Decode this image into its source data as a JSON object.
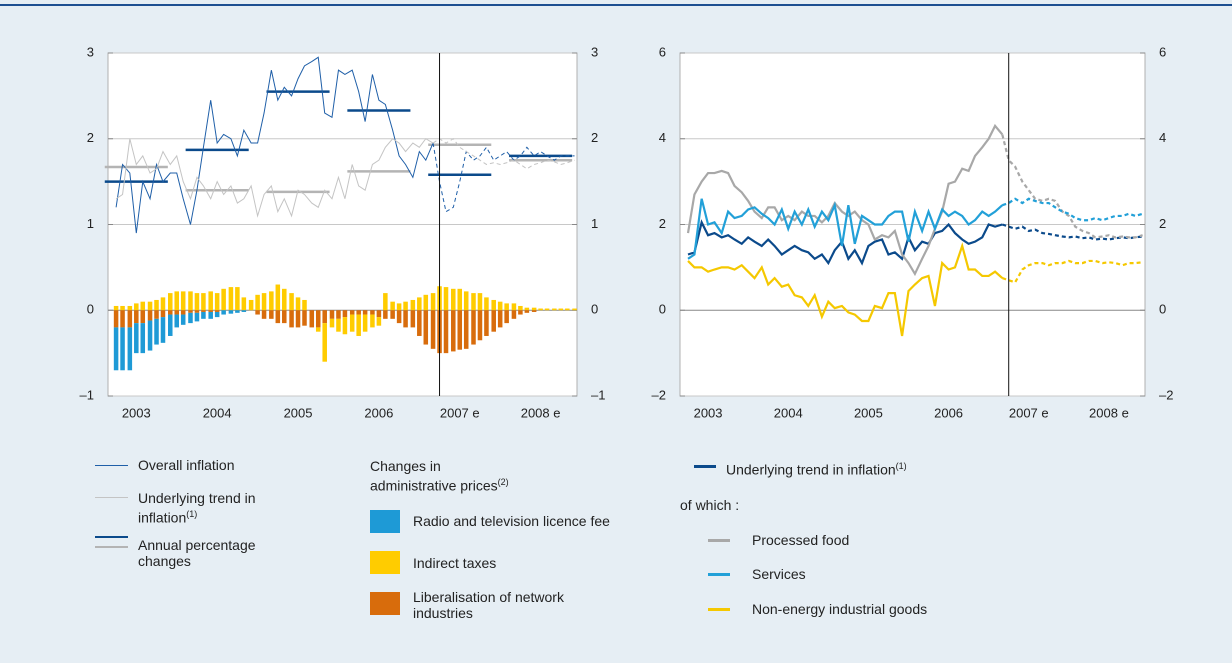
{
  "chart_data": [
    {
      "type": "line_bar",
      "xlim": [
        2003.15,
        2008.95
      ],
      "ylim": [
        -1,
        3
      ],
      "yticks": [
        {
          "value": -1,
          "label": "–1"
        },
        0,
        1,
        2,
        3
      ],
      "xticks": [
        {
          "value": 2003.5,
          "label": "2003"
        },
        {
          "value": 2004.5,
          "label": "2004"
        },
        {
          "value": 2005.5,
          "label": "2005"
        },
        {
          "value": 2006.5,
          "label": "2006"
        },
        {
          "value": 2007.5,
          "label": "2007 e"
        },
        {
          "value": 2008.5,
          "label": "2008 e"
        }
      ],
      "forecast_from": 2007.25,
      "grid": true,
      "x": [
        2003.25,
        2003.33,
        2003.42,
        2003.5,
        2003.58,
        2003.67,
        2003.75,
        2003.83,
        2003.92,
        2004,
        2004.08,
        2004.17,
        2004.25,
        2004.33,
        2004.42,
        2004.5,
        2004.58,
        2004.67,
        2004.75,
        2004.83,
        2004.92,
        2005,
        2005.08,
        2005.17,
        2005.25,
        2005.33,
        2005.42,
        2005.5,
        2005.58,
        2005.67,
        2005.75,
        2005.83,
        2005.92,
        2006,
        2006.08,
        2006.17,
        2006.25,
        2006.33,
        2006.42,
        2006.5,
        2006.58,
        2006.67,
        2006.75,
        2006.83,
        2006.92,
        2007,
        2007.08,
        2007.17,
        2007.25,
        2007.33,
        2007.42,
        2007.5,
        2007.58,
        2007.67,
        2007.75,
        2007.83,
        2007.92,
        2008,
        2008.08,
        2008.17,
        2008.25,
        2008.33,
        2008.42,
        2008.5,
        2008.58,
        2008.67,
        2008.75,
        2008.83,
        2008.92
      ],
      "series": [
        {
          "name": "Overall inflation",
          "color": "#1f5fa8",
          "values": [
            1.2,
            1.7,
            1.6,
            0.9,
            1.5,
            1.3,
            1.7,
            1.5,
            1.6,
            1.6,
            1.3,
            1.0,
            1.4,
            1.9,
            2.45,
            1.95,
            2.05,
            2.0,
            1.8,
            2.1,
            1.95,
            1.95,
            2.3,
            2.8,
            2.45,
            2.6,
            2.5,
            2.7,
            2.85,
            2.9,
            2.95,
            2.3,
            2.25,
            2.8,
            2.75,
            2.8,
            2.55,
            2.2,
            2.75,
            2.45,
            2.4,
            2.1,
            1.8,
            1.7,
            1.55,
            1.85,
            1.75,
            1.95,
            1.5,
            1.15,
            1.2,
            1.5,
            1.85,
            1.75,
            1.8,
            1.9,
            1.75,
            1.8,
            1.85,
            1.75,
            1.8,
            1.9,
            1.8,
            1.85,
            1.8,
            1.75,
            1.8,
            1.8,
            1.8
          ]
        },
        {
          "name": "Underlying trend in inflation",
          "note": "(1)",
          "color": "#c4c4c4",
          "values": [
            1.3,
            1.35,
            2.0,
            1.7,
            1.8,
            1.6,
            1.65,
            1.85,
            1.7,
            1.8,
            1.5,
            1.3,
            1.55,
            1.45,
            1.3,
            1.5,
            1.35,
            1.45,
            1.25,
            1.3,
            1.45,
            1.1,
            1.35,
            1.45,
            1.15,
            1.3,
            1.1,
            1.4,
            1.35,
            1.25,
            1.2,
            1.4,
            1.3,
            1.55,
            1.3,
            1.7,
            1.45,
            1.4,
            1.7,
            1.75,
            1.9,
            2.0,
            1.95,
            1.85,
            1.95,
            1.9,
            2.0,
            1.95,
            2.0,
            1.95,
            2.0,
            1.9,
            1.85,
            1.8,
            1.75,
            1.7,
            1.72,
            1.7,
            1.72,
            1.75,
            1.7,
            1.65,
            1.7,
            1.72,
            1.75,
            1.73,
            1.7,
            1.72,
            1.75
          ]
        }
      ],
      "annual": {
        "name": "Annual percentage changes",
        "series": [
          {
            "color": "#0b4a8b",
            "values": [
              1.5,
              1.87,
              2.55,
              2.33,
              1.58,
              1.8
            ]
          },
          {
            "color": "#b4b4b4",
            "values": [
              1.67,
              1.4,
              1.38,
              1.62,
              1.93,
              1.75
            ]
          }
        ]
      },
      "bar_title": "Changes in administrative prices",
      "bar_note": "(2)",
      "bars": [
        {
          "name": "Radio and television licence fee",
          "color": "#1e9ad6",
          "values": [
            -0.5,
            -0.5,
            -0.5,
            -0.35,
            -0.35,
            -0.35,
            -0.3,
            -0.3,
            -0.25,
            -0.15,
            -0.12,
            -0.12,
            -0.1,
            -0.08,
            -0.08,
            -0.06,
            -0.05,
            -0.04,
            -0.03,
            -0.02,
            0,
            0,
            0,
            0,
            0,
            0,
            0,
            0,
            0,
            0,
            0,
            0,
            0,
            0,
            0,
            0,
            0,
            0,
            0,
            0,
            0,
            0,
            0,
            0,
            0,
            0,
            0,
            0,
            0,
            0,
            0,
            0,
            0,
            0,
            0,
            0,
            0,
            0,
            0,
            0,
            0,
            0,
            0,
            0,
            0,
            0,
            0,
            0,
            0
          ]
        },
        {
          "name": "Indirect taxes",
          "color": "#ffcc00",
          "values": [
            0.05,
            0.05,
            0.05,
            0.08,
            0.1,
            0.1,
            0.12,
            0.15,
            0.2,
            0.22,
            0.22,
            0.22,
            0.2,
            0.2,
            0.22,
            0.2,
            0.25,
            0.27,
            0.27,
            0.15,
            0.12,
            0.18,
            0.2,
            0.22,
            0.3,
            0.25,
            0.2,
            0.15,
            0.12,
            0,
            -0.05,
            -0.45,
            -0.1,
            -0.15,
            -0.2,
            -0.2,
            -0.25,
            -0.2,
            -0.15,
            -0.1,
            0.2,
            0.1,
            0.08,
            0.1,
            0.12,
            0.15,
            0.18,
            0.2,
            0.28,
            0.27,
            0.25,
            0.25,
            0.22,
            0.2,
            0.2,
            0.15,
            0.12,
            0.1,
            0.08,
            0.08,
            0.05,
            0.03,
            0.03,
            0.02,
            0.02,
            0.02,
            0.02,
            0.02,
            0.02
          ]
        },
        {
          "name": "Liberalisation of network industries",
          "color": "#d86c0c",
          "values": [
            -0.2,
            -0.2,
            -0.2,
            -0.15,
            -0.15,
            -0.12,
            -0.1,
            -0.08,
            -0.05,
            -0.05,
            -0.05,
            -0.03,
            -0.03,
            -0.02,
            -0.02,
            -0.02,
            0,
            0,
            0,
            0,
            0,
            -0.05,
            -0.1,
            -0.1,
            -0.15,
            -0.15,
            -0.2,
            -0.2,
            -0.18,
            -0.2,
            -0.2,
            -0.15,
            -0.1,
            -0.1,
            -0.08,
            -0.05,
            -0.05,
            -0.05,
            -0.05,
            -0.08,
            -0.1,
            -0.1,
            -0.15,
            -0.2,
            -0.2,
            -0.3,
            -0.4,
            -0.45,
            -0.5,
            -0.5,
            -0.48,
            -0.46,
            -0.45,
            -0.4,
            -0.35,
            -0.3,
            -0.25,
            -0.2,
            -0.15,
            -0.1,
            -0.05,
            -0.03,
            -0.02,
            0,
            0,
            0,
            0,
            0,
            0
          ]
        }
      ]
    },
    {
      "type": "line",
      "xlim": [
        2003.15,
        2008.95
      ],
      "ylim": [
        -2,
        6
      ],
      "yticks": [
        {
          "value": -2,
          "label": "–2"
        },
        0,
        2,
        4,
        6
      ],
      "xticks": [
        {
          "value": 2003.5,
          "label": "2003"
        },
        {
          "value": 2004.5,
          "label": "2004"
        },
        {
          "value": 2005.5,
          "label": "2005"
        },
        {
          "value": 2006.5,
          "label": "2006"
        },
        {
          "value": 2007.5,
          "label": "2007 e"
        },
        {
          "value": 2008.5,
          "label": "2008 e"
        }
      ],
      "forecast_from": 2007.25,
      "grid": true,
      "of_which": "of which :",
      "x": [
        2003.25,
        2003.33,
        2003.42,
        2003.5,
        2003.58,
        2003.67,
        2003.75,
        2003.83,
        2003.92,
        2004,
        2004.08,
        2004.17,
        2004.25,
        2004.33,
        2004.42,
        2004.5,
        2004.58,
        2004.67,
        2004.75,
        2004.83,
        2004.92,
        2005,
        2005.08,
        2005.17,
        2005.25,
        2005.33,
        2005.42,
        2005.5,
        2005.58,
        2005.67,
        2005.75,
        2005.83,
        2005.92,
        2006,
        2006.08,
        2006.17,
        2006.25,
        2006.33,
        2006.42,
        2006.5,
        2006.58,
        2006.67,
        2006.75,
        2006.83,
        2006.92,
        2007,
        2007.08,
        2007.17,
        2007.25,
        2007.33,
        2007.42,
        2007.5,
        2007.58,
        2007.67,
        2007.75,
        2007.83,
        2007.92,
        2008,
        2008.08,
        2008.17,
        2008.25,
        2008.33,
        2008.42,
        2008.5,
        2008.58,
        2008.67,
        2008.75,
        2008.83,
        2008.92
      ],
      "series": [
        {
          "name": "Underlying trend in inflation",
          "note": "(1)",
          "color": "#0b4a8b",
          "values": [
            1.3,
            1.35,
            2.05,
            1.75,
            1.8,
            1.7,
            1.75,
            1.65,
            1.55,
            1.7,
            1.6,
            1.5,
            1.65,
            1.5,
            1.3,
            1.4,
            1.5,
            1.4,
            1.35,
            1.2,
            1.3,
            1.1,
            1.4,
            1.6,
            1.2,
            1.4,
            1.1,
            1.5,
            1.6,
            1.65,
            1.3,
            1.35,
            1.2,
            1.7,
            1.4,
            1.6,
            1.55,
            1.8,
            1.85,
            2.0,
            1.8,
            1.65,
            1.55,
            1.6,
            1.7,
            2.0,
            1.95,
            2.0,
            1.95,
            1.9,
            1.95,
            1.85,
            1.88,
            1.8,
            1.78,
            1.75,
            1.72,
            1.7,
            1.72,
            1.68,
            1.7,
            1.65,
            1.67,
            1.65,
            1.68,
            1.7,
            1.68,
            1.7,
            1.72
          ]
        },
        {
          "name": "Processed food",
          "color": "#a8a8a8",
          "values": [
            1.8,
            2.7,
            3.0,
            3.2,
            3.2,
            3.25,
            3.2,
            2.9,
            2.75,
            2.55,
            2.3,
            2.15,
            2.4,
            2.4,
            2.1,
            2.2,
            2.1,
            2.3,
            2.2,
            2.2,
            2.05,
            2.2,
            2.5,
            2.3,
            2.2,
            2.3,
            2.1,
            2.0,
            1.65,
            1.75,
            1.7,
            1.85,
            1.3,
            1.1,
            0.85,
            1.2,
            1.5,
            1.9,
            2.3,
            2.95,
            3.0,
            3.3,
            3.25,
            3.6,
            3.8,
            4.0,
            4.3,
            4.1,
            3.5,
            3.35,
            3.0,
            2.8,
            2.6,
            2.55,
            2.6,
            2.55,
            2.3,
            2.2,
            1.95,
            1.85,
            1.8,
            1.7,
            1.72,
            1.75,
            1.7,
            1.72,
            1.7,
            1.7,
            1.75
          ]
        },
        {
          "name": "Services",
          "color": "#22a0d8",
          "values": [
            1.2,
            1.3,
            2.6,
            2.0,
            2.05,
            1.8,
            2.3,
            2.15,
            2.2,
            2.35,
            2.4,
            2.25,
            2.15,
            2.0,
            2.35,
            1.9,
            2.3,
            2.0,
            2.35,
            1.95,
            2.3,
            2.1,
            2.45,
            1.5,
            2.45,
            1.55,
            2.2,
            2.1,
            2.0,
            2.0,
            2.2,
            2.3,
            2.3,
            1.6,
            2.3,
            1.85,
            2.3,
            1.9,
            2.35,
            2.2,
            2.3,
            2.2,
            2.0,
            2.1,
            2.3,
            2.2,
            2.3,
            2.45,
            2.5,
            2.6,
            2.5,
            2.6,
            2.55,
            2.5,
            2.5,
            2.4,
            2.3,
            2.25,
            2.15,
            2.1,
            2.1,
            2.15,
            2.1,
            2.15,
            2.2,
            2.2,
            2.25,
            2.2,
            2.25
          ]
        },
        {
          "name": "Non-energy industrial goods",
          "color": "#f5c800",
          "values": [
            1.15,
            1.0,
            1.0,
            0.9,
            0.95,
            1.0,
            1.0,
            0.95,
            1.05,
            0.9,
            0.75,
            1.0,
            0.6,
            0.75,
            0.55,
            0.6,
            0.35,
            0.3,
            0.1,
            0.35,
            -0.15,
            0.2,
            0.05,
            0.1,
            -0.05,
            -0.1,
            -0.25,
            -0.25,
            0.1,
            0.05,
            0.4,
            0.4,
            -0.6,
            0.45,
            0.6,
            0.75,
            0.8,
            0.1,
            1.1,
            0.95,
            1.0,
            1.5,
            0.95,
            0.95,
            0.8,
            0.8,
            0.9,
            0.75,
            0.7,
            0.65,
            0.95,
            1.05,
            1.1,
            1.1,
            1.05,
            1.1,
            1.1,
            1.15,
            1.1,
            1.1,
            1.15,
            1.15,
            1.1,
            1.12,
            1.1,
            1.05,
            1.1,
            1.1,
            1.12
          ]
        }
      ]
    }
  ]
}
